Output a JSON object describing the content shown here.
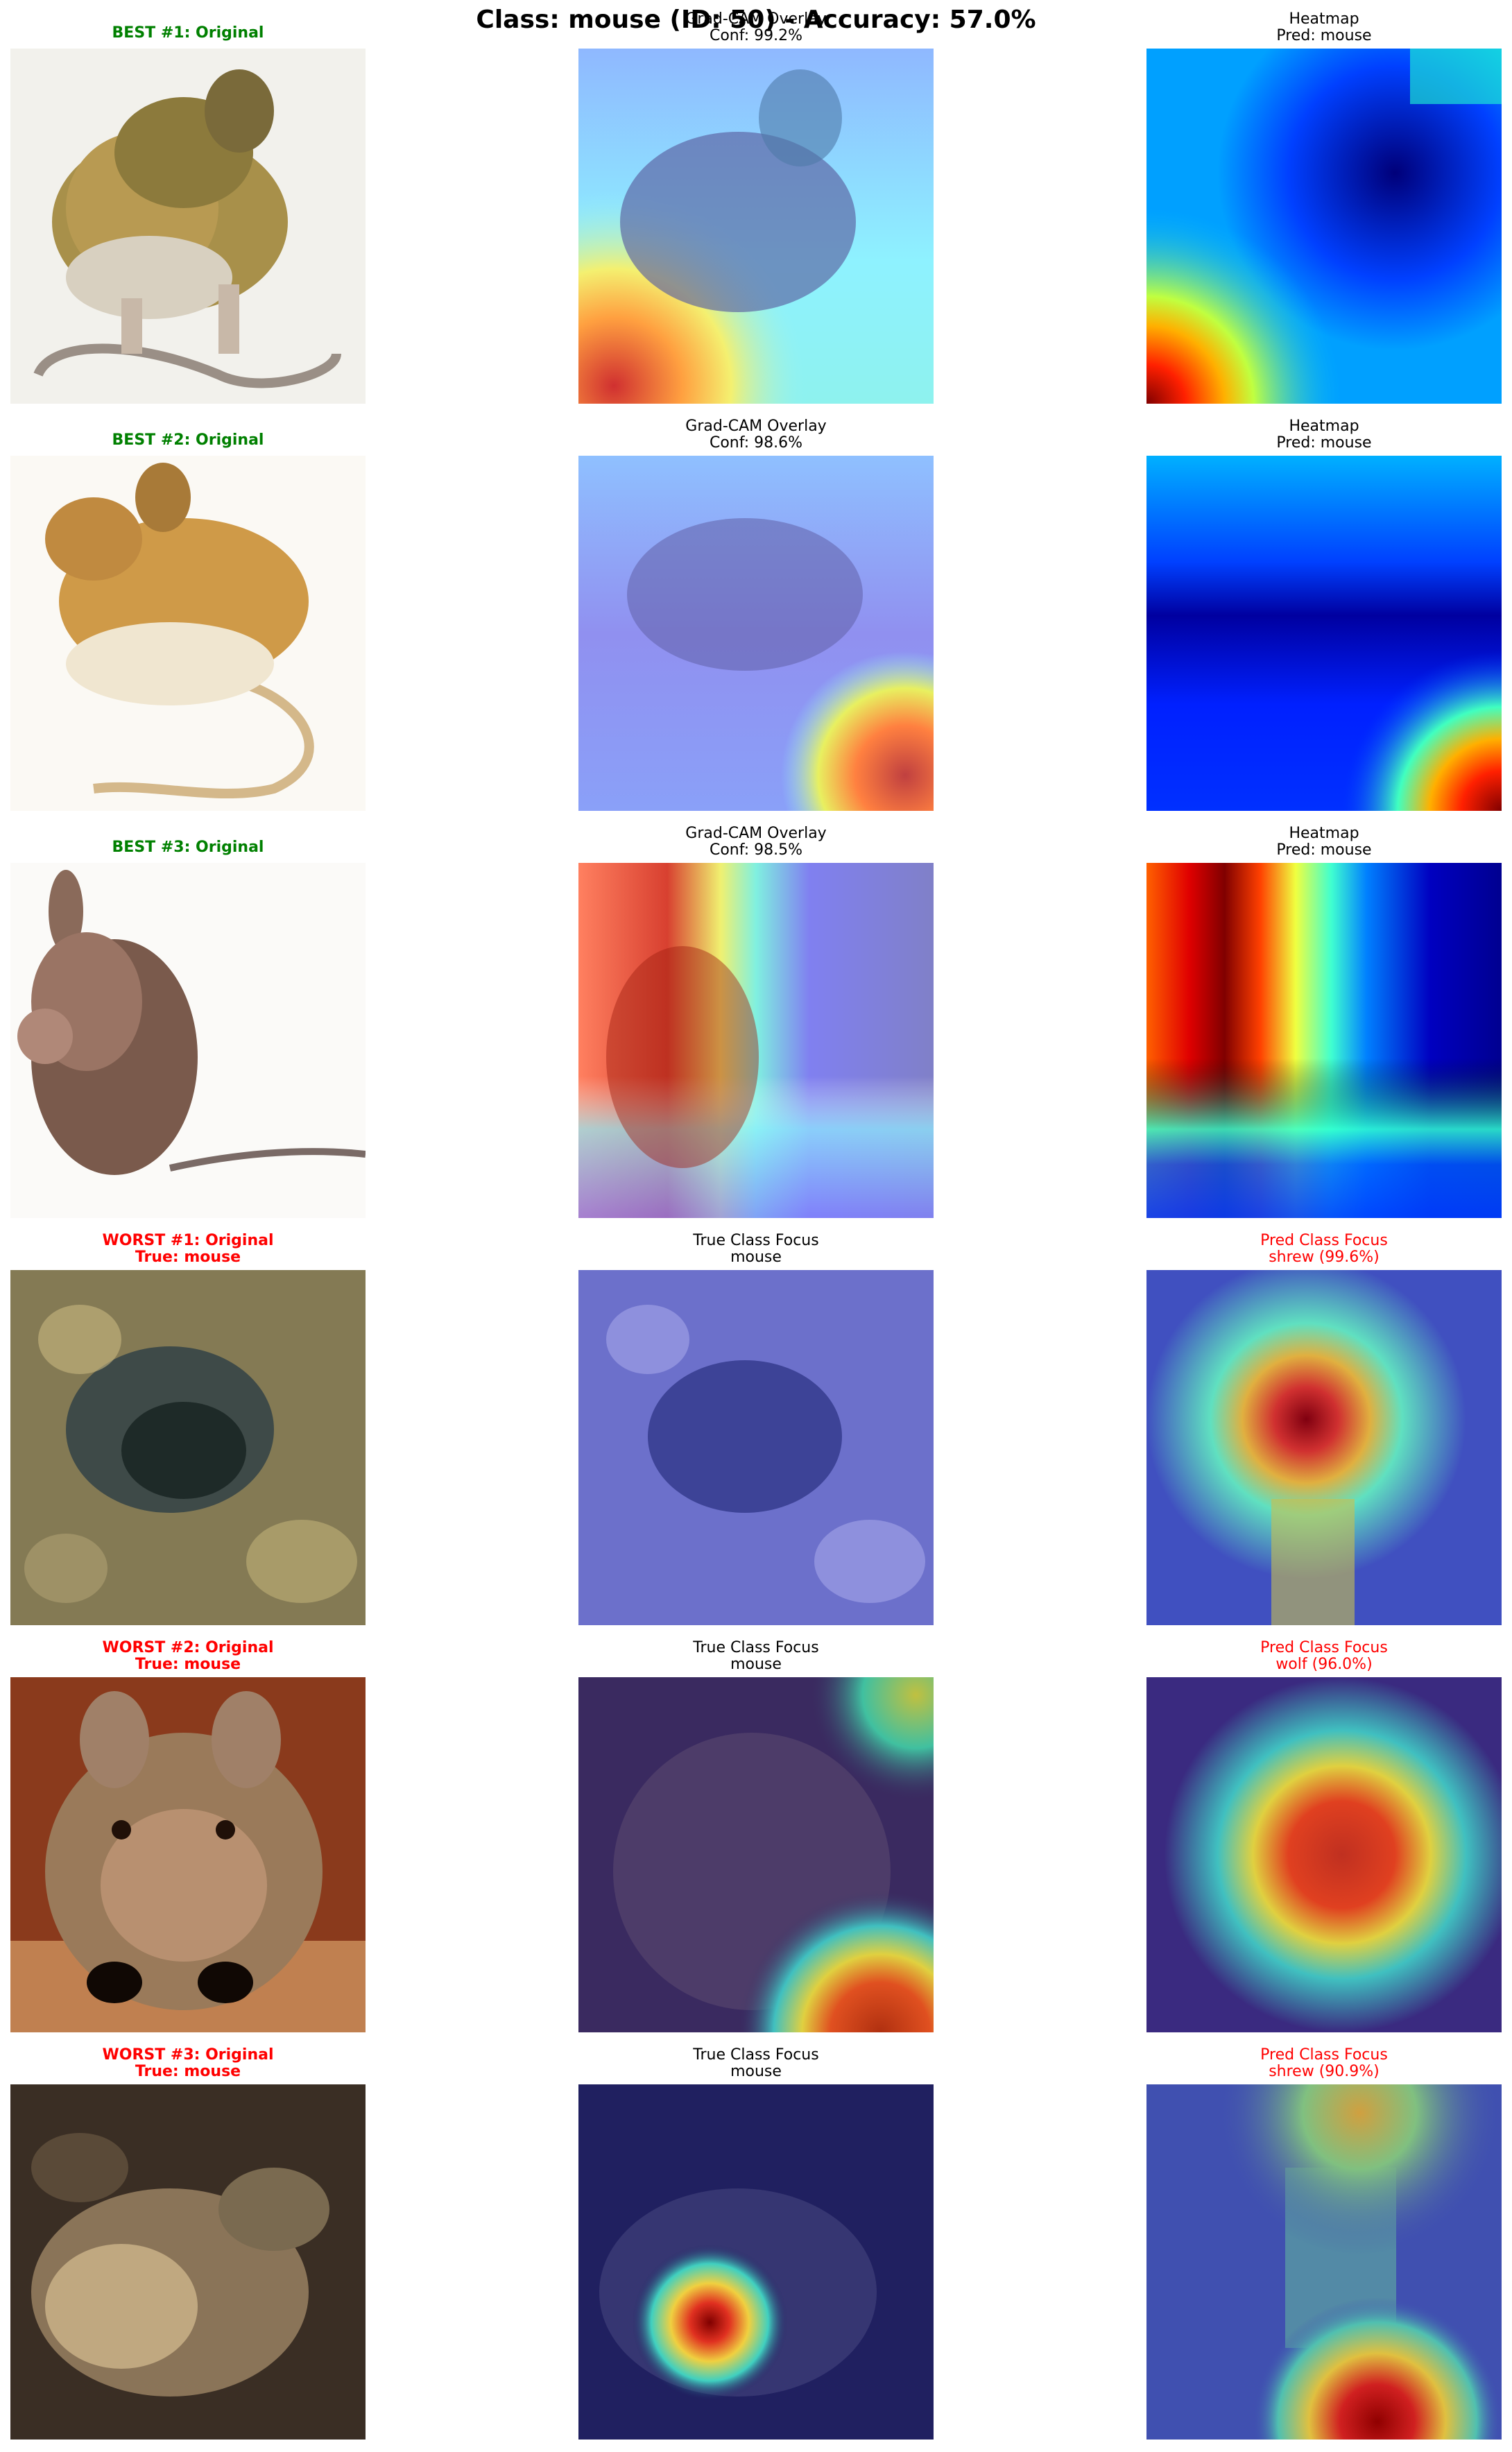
{
  "suptitle": "Class: mouse (ID: 50) - Accuracy: 57.0%",
  "colors": {
    "best": "#008000",
    "worst": "#ff0000",
    "neutral": "#000000"
  },
  "rows": [
    {
      "kind": "best",
      "original": {
        "title": "BEST #1: Original"
      },
      "overlay": {
        "title": "Grad-CAM Overlay",
        "subtitle": "Conf: 99.2%"
      },
      "heatmap": {
        "title": "Heatmap",
        "subtitle": "Pred: mouse"
      }
    },
    {
      "kind": "best",
      "original": {
        "title": "BEST #2: Original"
      },
      "overlay": {
        "title": "Grad-CAM Overlay",
        "subtitle": "Conf: 98.6%"
      },
      "heatmap": {
        "title": "Heatmap",
        "subtitle": "Pred: mouse"
      }
    },
    {
      "kind": "best",
      "original": {
        "title": "BEST #3: Original"
      },
      "overlay": {
        "title": "Grad-CAM Overlay",
        "subtitle": "Conf: 98.5%"
      },
      "heatmap": {
        "title": "Heatmap",
        "subtitle": "Pred: mouse"
      }
    },
    {
      "kind": "worst",
      "original": {
        "title": "WORST #1: Original",
        "subtitle": "True: mouse"
      },
      "overlay": {
        "title": "True Class Focus",
        "subtitle": "mouse"
      },
      "heatmap": {
        "title": "Pred Class Focus",
        "subtitle": "shrew (99.6%)"
      }
    },
    {
      "kind": "worst",
      "original": {
        "title": "WORST #2: Original",
        "subtitle": "True: mouse"
      },
      "overlay": {
        "title": "True Class Focus",
        "subtitle": "mouse"
      },
      "heatmap": {
        "title": "Pred Class Focus",
        "subtitle": "wolf (96.0%)"
      }
    },
    {
      "kind": "worst",
      "original": {
        "title": "WORST #3: Original",
        "subtitle": "True: mouse"
      },
      "overlay": {
        "title": "True Class Focus",
        "subtitle": "mouse"
      },
      "heatmap": {
        "title": "Pred Class Focus",
        "subtitle": "shrew (90.9%)"
      }
    }
  ]
}
